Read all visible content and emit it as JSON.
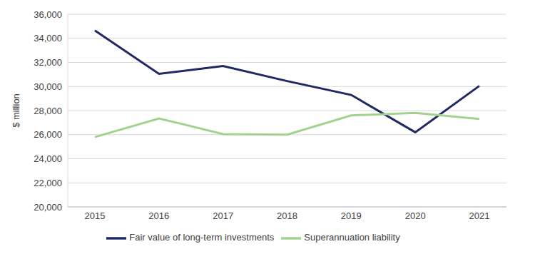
{
  "chart_data": {
    "type": "line",
    "y_label": "$ million",
    "categories": [
      "2015",
      "2016",
      "2017",
      "2018",
      "2019",
      "2020",
      "2021"
    ],
    "series": [
      {
        "name": "Fair value of long-term investments",
        "color": "#1f2a64",
        "values": [
          34650,
          31050,
          31700,
          30450,
          29300,
          26200,
          30050
        ]
      },
      {
        "name": "Superannuation liability",
        "color": "#a3d18f",
        "values": [
          25800,
          27350,
          26050,
          26000,
          27600,
          27800,
          27300
        ]
      }
    ],
    "ylim": [
      20000,
      36000
    ],
    "yticks": [
      {
        "value": 20000,
        "label": "20,000"
      },
      {
        "value": 22000,
        "label": "22,000"
      },
      {
        "value": 24000,
        "label": "24,000"
      },
      {
        "value": 26000,
        "label": "26,000"
      },
      {
        "value": 28000,
        "label": "28,000"
      },
      {
        "value": 30000,
        "label": "30,000"
      },
      {
        "value": 32000,
        "label": "32,000"
      },
      {
        "value": 34000,
        "label": "34,000"
      },
      {
        "value": 36000,
        "label": "36,000"
      }
    ],
    "grid": true,
    "legend": "bottom"
  }
}
